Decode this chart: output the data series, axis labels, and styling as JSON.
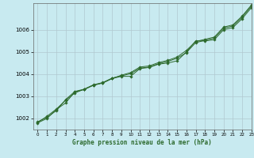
{
  "title": "Graphe pression niveau de la mer (hPa)",
  "background_color": "#c8eaf0",
  "grid_color": "#b0c8d0",
  "line_color": "#2d6a2d",
  "marker_color": "#2d6a2d",
  "xlim": [
    -0.5,
    23
  ],
  "ylim": [
    1001.5,
    1007.2
  ],
  "yticks": [
    1002,
    1003,
    1004,
    1005,
    1006
  ],
  "xticks": [
    0,
    1,
    2,
    3,
    4,
    5,
    6,
    7,
    8,
    9,
    10,
    11,
    12,
    13,
    14,
    15,
    16,
    17,
    18,
    19,
    20,
    21,
    22,
    23
  ],
  "series": [
    [
      1001.8,
      1002.0,
      1002.4,
      1002.7,
      1003.2,
      1003.3,
      1003.5,
      1003.6,
      1003.8,
      1003.9,
      1003.9,
      1004.25,
      1004.3,
      1004.45,
      1004.5,
      1004.6,
      1005.0,
      1005.5,
      1005.5,
      1005.55,
      1006.0,
      1006.1,
      1006.5,
      1007.0
    ],
    [
      1001.82,
      1002.1,
      1002.42,
      1002.82,
      1003.15,
      1003.32,
      1003.52,
      1003.62,
      1003.82,
      1003.92,
      1004.02,
      1004.27,
      1004.32,
      1004.47,
      1004.57,
      1004.72,
      1004.97,
      1005.42,
      1005.52,
      1005.62,
      1006.07,
      1006.17,
      1006.57,
      1007.07
    ],
    [
      1001.85,
      1002.05,
      1002.35,
      1002.85,
      1003.22,
      1003.32,
      1003.5,
      1003.6,
      1003.8,
      1003.95,
      1004.07,
      1004.32,
      1004.37,
      1004.52,
      1004.62,
      1004.77,
      1005.07,
      1005.47,
      1005.57,
      1005.67,
      1006.12,
      1006.22,
      1006.62,
      1007.12
    ]
  ]
}
